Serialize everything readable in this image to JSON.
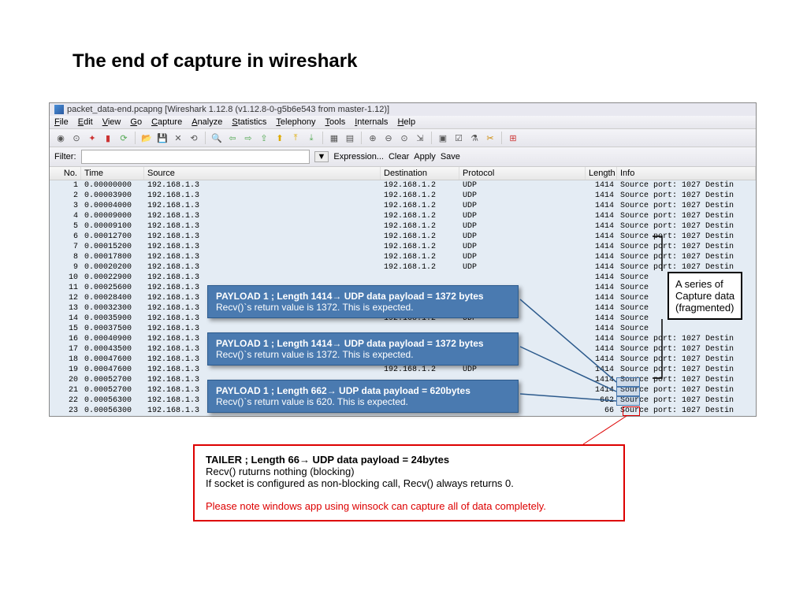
{
  "slide": {
    "title": "The end  of capture in wireshark"
  },
  "window": {
    "title": "packet_data-end.pcapng   [Wireshark 1.12.8  (v1.12.8-0-g5b6e543 from master-1.12)]",
    "menus": [
      "File",
      "Edit",
      "View",
      "Go",
      "Capture",
      "Analyze",
      "Statistics",
      "Telephony",
      "Tools",
      "Internals",
      "Help"
    ],
    "filter_label": "Filter:",
    "filter_value": "",
    "filter_buttons": [
      "Expression...",
      "Clear",
      "Apply",
      "Save"
    ],
    "columns": [
      "No.",
      "Time",
      "Source",
      "Destination",
      "Protocol",
      "Length",
      "Info"
    ]
  },
  "packets": [
    {
      "no": 1,
      "time": "0.00000000",
      "src": "192.168.1.3",
      "dst": "192.168.1.2",
      "proto": "UDP",
      "len": 1414,
      "info": "Source port: 1027   Destin"
    },
    {
      "no": 2,
      "time": "0.00003900",
      "src": "192.168.1.3",
      "dst": "192.168.1.2",
      "proto": "UDP",
      "len": 1414,
      "info": "Source port: 1027   Destin"
    },
    {
      "no": 3,
      "time": "0.00004000",
      "src": "192.168.1.3",
      "dst": "192.168.1.2",
      "proto": "UDP",
      "len": 1414,
      "info": "Source port: 1027   Destin"
    },
    {
      "no": 4,
      "time": "0.00009000",
      "src": "192.168.1.3",
      "dst": "192.168.1.2",
      "proto": "UDP",
      "len": 1414,
      "info": "Source port: 1027   Destin"
    },
    {
      "no": 5,
      "time": "0.00009100",
      "src": "192.168.1.3",
      "dst": "192.168.1.2",
      "proto": "UDP",
      "len": 1414,
      "info": "Source port: 1027   Destin"
    },
    {
      "no": 6,
      "time": "0.00012700",
      "src": "192.168.1.3",
      "dst": "192.168.1.2",
      "proto": "UDP",
      "len": 1414,
      "info": "Source port: 1027   Destin"
    },
    {
      "no": 7,
      "time": "0.00015200",
      "src": "192.168.1.3",
      "dst": "192.168.1.2",
      "proto": "UDP",
      "len": 1414,
      "info": "Source port: 1027   Destin"
    },
    {
      "no": 8,
      "time": "0.00017800",
      "src": "192.168.1.3",
      "dst": "192.168.1.2",
      "proto": "UDP",
      "len": 1414,
      "info": "Source port: 1027   Destin"
    },
    {
      "no": 9,
      "time": "0.00020200",
      "src": "192.168.1.3",
      "dst": "192.168.1.2",
      "proto": "UDP",
      "len": 1414,
      "info": "Source port: 1027   Destin"
    },
    {
      "no": 10,
      "time": "0.00022900",
      "src": "192.168.1.3",
      "dst": "",
      "proto": "",
      "len": 1414,
      "info": "Source"
    },
    {
      "no": 11,
      "time": "0.00025600",
      "src": "192.168.1.3",
      "dst": "",
      "proto": "",
      "len": 1414,
      "info": "Source"
    },
    {
      "no": 12,
      "time": "0.00028400",
      "src": "192.168.1.3",
      "dst": "",
      "proto": "",
      "len": 1414,
      "info": "Source"
    },
    {
      "no": 13,
      "time": "0.00032300",
      "src": "192.168.1.3",
      "dst": "",
      "proto": "",
      "len": 1414,
      "info": "Source"
    },
    {
      "no": 14,
      "time": "0.00035900",
      "src": "192.168.1.3",
      "dst": "192.168.1.2",
      "proto": "UDP",
      "len": 1414,
      "info": "Source"
    },
    {
      "no": 15,
      "time": "0.00037500",
      "src": "192.168.1.3",
      "dst": "",
      "proto": "",
      "len": 1414,
      "info": "Source"
    },
    {
      "no": 16,
      "time": "0.00040900",
      "src": "192.168.1.3",
      "dst": "",
      "proto": "",
      "len": 1414,
      "info": "Source port: 1027   Destin"
    },
    {
      "no": 17,
      "time": "0.00043500",
      "src": "192.168.1.3",
      "dst": "",
      "proto": "",
      "len": 1414,
      "info": "Source port: 1027   Destin"
    },
    {
      "no": 18,
      "time": "0.00047600",
      "src": "192.168.1.3",
      "dst": "",
      "proto": "",
      "len": 1414,
      "info": "Source port: 1027   Destin"
    },
    {
      "no": 19,
      "time": "0.00047600",
      "src": "192.168.1.3",
      "dst": "192.168.1.2",
      "proto": "UDP",
      "len": 1414,
      "info": "Source port: 1027   Destin"
    },
    {
      "no": 20,
      "time": "0.00052700",
      "src": "192.168.1.3",
      "dst": "",
      "proto": "",
      "len": 1414,
      "info": "Source port: 1027   Destin"
    },
    {
      "no": 21,
      "time": "0.00052700",
      "src": "192.168.1.3",
      "dst": "",
      "proto": "",
      "len": 1414,
      "info": "Source port: 1027   Destin"
    },
    {
      "no": 22,
      "time": "0.00056300",
      "src": "192.168.1.3",
      "dst": "",
      "proto": "",
      "len": 662,
      "info": "Source port: 1027   Destin"
    },
    {
      "no": 23,
      "time": "0.00056300",
      "src": "192.168.1.3",
      "dst": "",
      "proto": "",
      "len": 66,
      "info": "Source port: 1027   Destin"
    }
  ],
  "callouts": {
    "c1": {
      "line1a": "PAYLOAD 1 ; Length 1414",
      "line1b": " UDP data payload = 1372 bytes",
      "line2": "Recv()`s return value is 1372. This is expected."
    },
    "c2": {
      "line1a": "PAYLOAD 1 ; Length 1414",
      "line1b": " UDP data payload = 1372 bytes",
      "line2": "Recv()`s return value is 1372. This is expected."
    },
    "c3": {
      "line1a": "PAYLOAD 1 ; Length 662",
      "line1b": " UDP data payload = 620bytes",
      "line2": "Recv()`s return value is 620. This is expected."
    }
  },
  "side": {
    "l1": "A series of",
    "l2": "Capture data",
    "l3": "(fragmented)"
  },
  "redbox": {
    "title_a": "TAILER ; Length 66",
    "title_b": " UDP data payload = 24bytes",
    "l2": "Recv() ruturns nothing (blocking)",
    "l3": "If socket is configured as non-blocking call, Recv() always returns 0.",
    "l4": "Please note windows app using winsock can capture all of data completely."
  },
  "colors": {
    "callout_bg": "#4a7ab0",
    "callout_border": "#2c5a8c",
    "row_bg": "#e4ecf4",
    "red": "#d00000"
  }
}
